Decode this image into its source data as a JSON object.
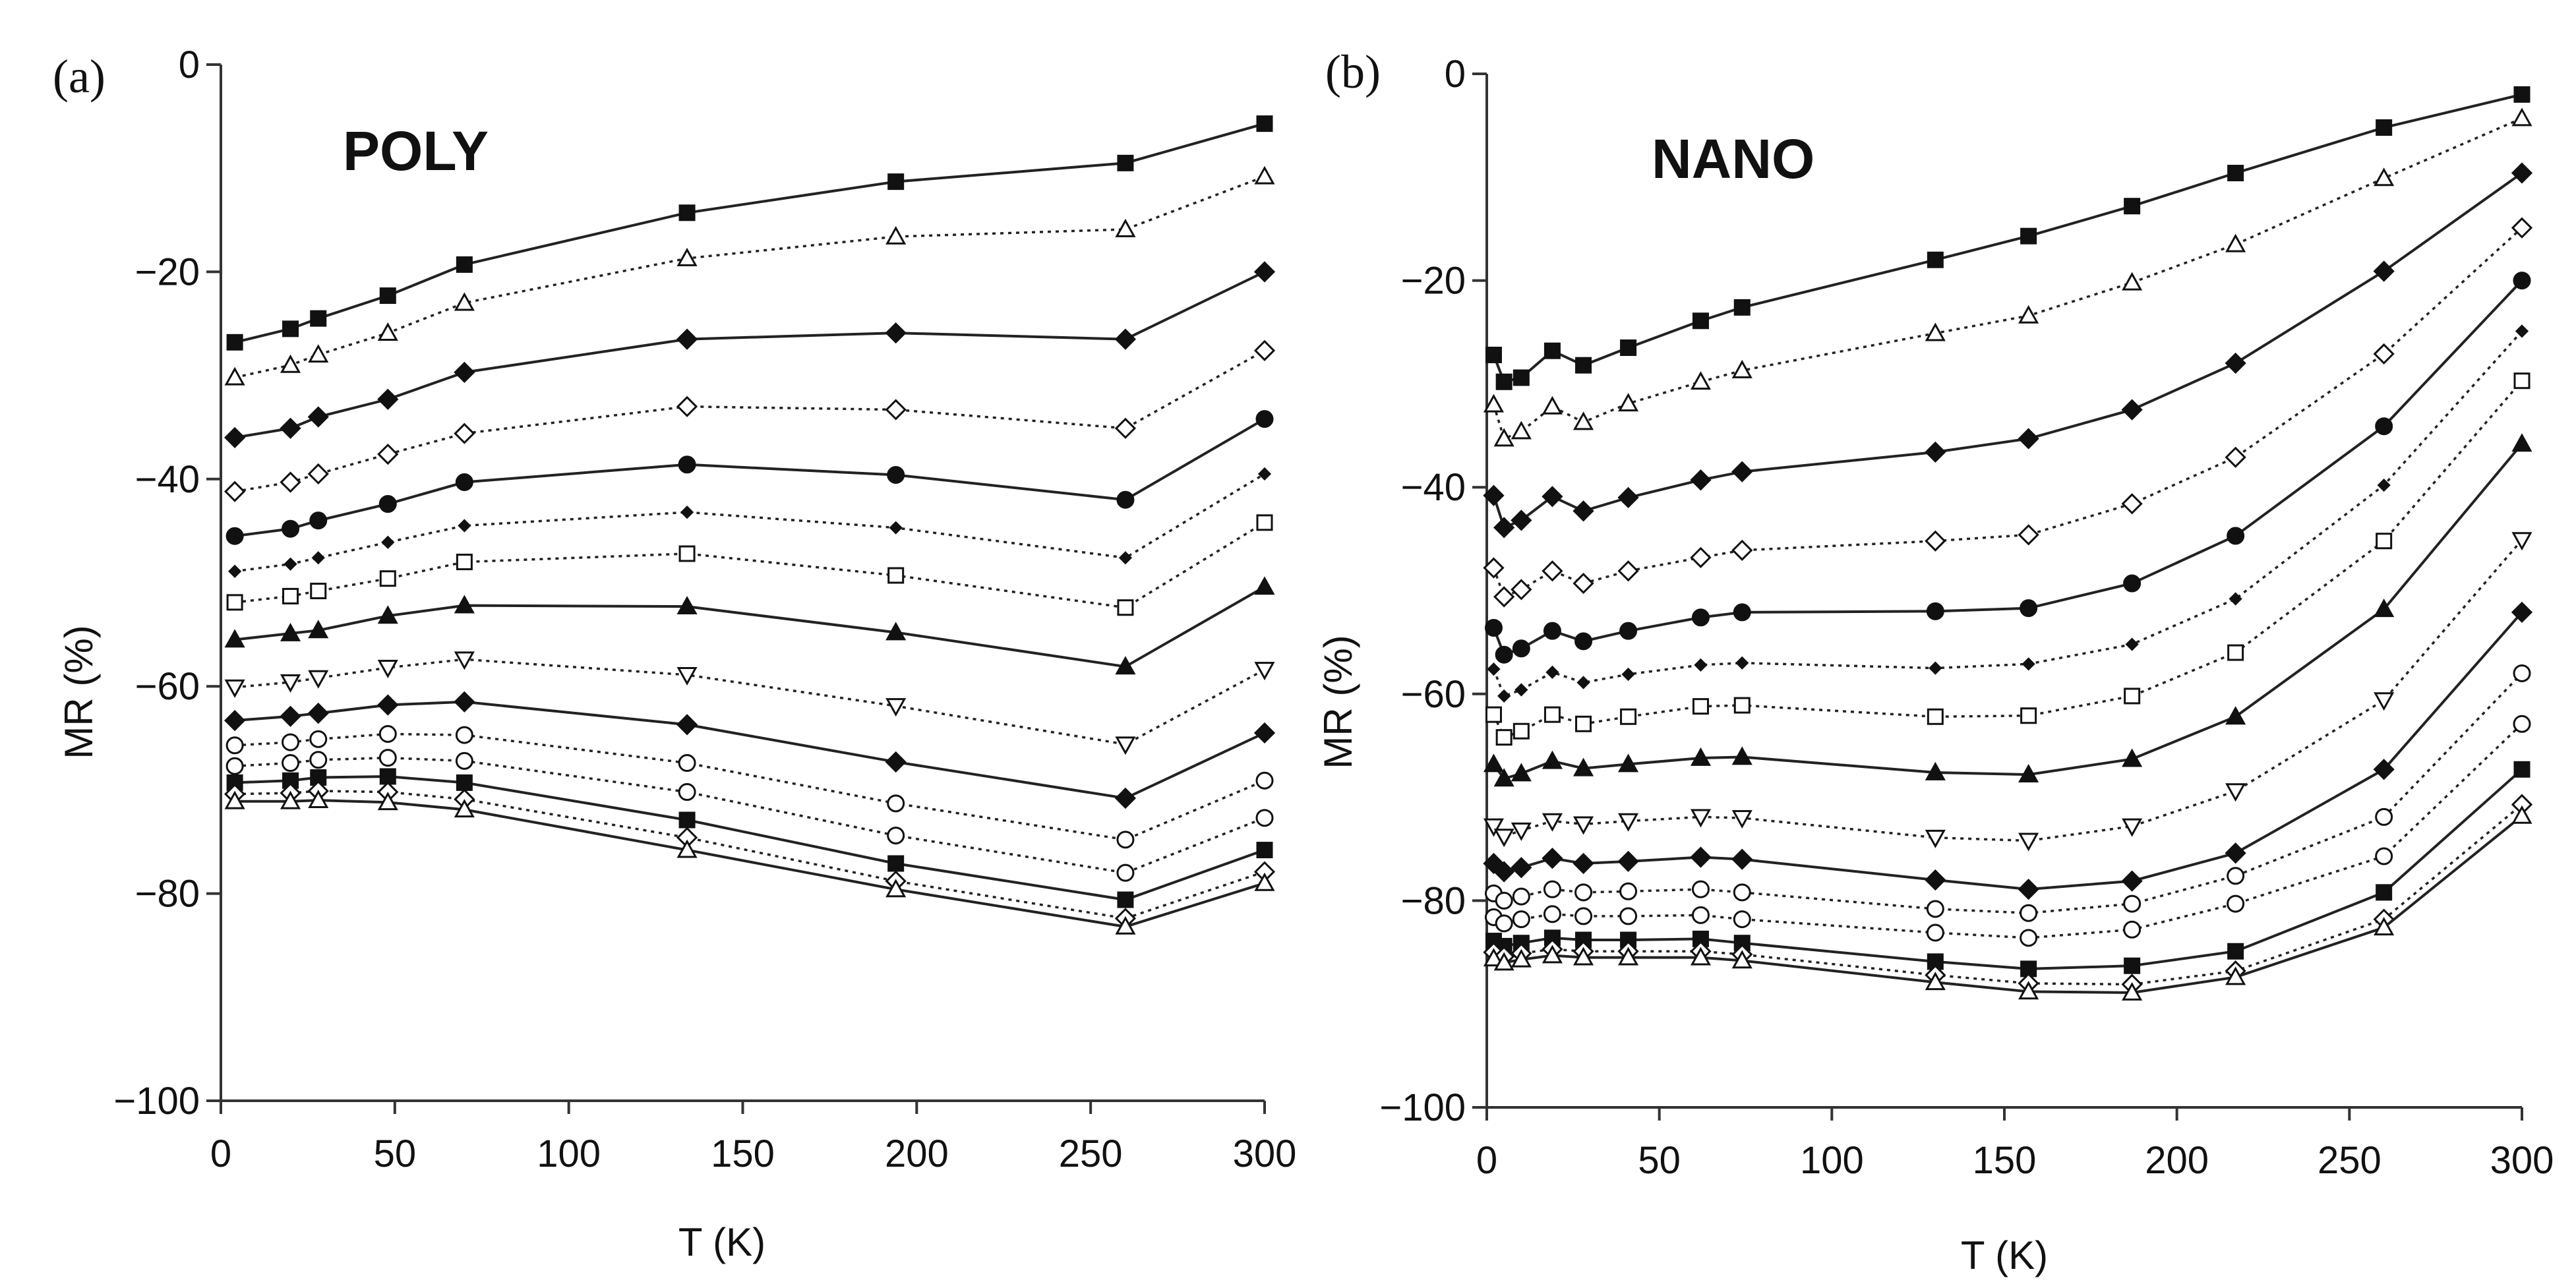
{
  "chart_data": [
    {
      "type": "line",
      "panel_letter": "(a)",
      "title": "POLY",
      "xlabel": "T (K)",
      "ylabel": "MR (%)",
      "xlim": [
        0,
        300
      ],
      "ylim": [
        -100,
        0
      ],
      "xticks": [
        0,
        50,
        100,
        150,
        200,
        250,
        300
      ],
      "yticks": [
        0,
        -20,
        -40,
        -60,
        -80,
        -100
      ],
      "xtick_labels": [
        "0",
        "50",
        "100",
        "150",
        "200",
        "250",
        "300"
      ],
      "ytick_labels": [
        "0",
        "−20",
        "−40",
        "−60",
        "−80",
        "−100"
      ],
      "x": [
        4,
        20,
        28,
        48,
        70,
        134,
        194,
        260,
        300
      ],
      "series": [
        {
          "marker": "square-filled",
          "line": "solid",
          "values": [
            -26.8,
            -25.5,
            -24.5,
            -22.3,
            -19.3,
            -14.3,
            -11.3,
            -9.5,
            -5.7
          ]
        },
        {
          "marker": "triangle-open",
          "line": "dotted",
          "values": [
            -30.2,
            -29.0,
            -28.0,
            -25.9,
            -23.0,
            -18.7,
            -16.6,
            -15.9,
            -10.8
          ]
        },
        {
          "marker": "diamond-filled",
          "line": "solid",
          "values": [
            -36.0,
            -35.1,
            -34.0,
            -32.3,
            -29.7,
            -26.5,
            -25.9,
            -26.5,
            -20.0
          ]
        },
        {
          "marker": "diamond-open",
          "line": "dotted",
          "values": [
            -41.2,
            -40.3,
            -39.5,
            -37.6,
            -35.6,
            -33.0,
            -33.3,
            -35.1,
            -27.6
          ]
        },
        {
          "marker": "circle-filled",
          "line": "solid",
          "values": [
            -45.5,
            -44.8,
            -44.0,
            -42.4,
            -40.3,
            -38.6,
            -39.6,
            -42.0,
            -34.2
          ]
        },
        {
          "marker": "small-diamond",
          "line": "dotted",
          "values": [
            -48.9,
            -48.2,
            -47.6,
            -46.1,
            -44.5,
            -43.2,
            -44.7,
            -47.6,
            -39.5
          ]
        },
        {
          "marker": "square-open",
          "line": "dotted",
          "values": [
            -51.9,
            -51.3,
            -50.8,
            -49.6,
            -48.0,
            -47.2,
            -49.3,
            -52.4,
            -44.2
          ]
        },
        {
          "marker": "triangle-filled",
          "line": "solid",
          "values": [
            -55.5,
            -54.9,
            -54.6,
            -53.2,
            -52.2,
            -52.3,
            -54.8,
            -58.1,
            -50.4
          ]
        },
        {
          "marker": "down-triangle-open",
          "line": "dotted",
          "values": [
            -60.1,
            -59.6,
            -59.2,
            -58.2,
            -57.4,
            -58.9,
            -61.9,
            -65.6,
            -58.4
          ]
        },
        {
          "marker": "diamond-filled",
          "line": "solid",
          "values": [
            -63.3,
            -62.9,
            -62.6,
            -61.8,
            -61.5,
            -63.7,
            -67.3,
            -70.8,
            -64.5
          ]
        },
        {
          "marker": "circle-open",
          "line": "dotted",
          "values": [
            -65.7,
            -65.4,
            -65.1,
            -64.6,
            -64.7,
            -67.4,
            -71.3,
            -74.8,
            -69.1
          ]
        },
        {
          "marker": "circle-open",
          "line": "dotted",
          "values": [
            -67.7,
            -67.4,
            -67.1,
            -66.9,
            -67.2,
            -70.2,
            -74.4,
            -78.0,
            -72.7
          ]
        },
        {
          "marker": "square-filled",
          "line": "solid",
          "values": [
            -69.3,
            -69.1,
            -68.8,
            -68.7,
            -69.3,
            -72.9,
            -77.1,
            -80.6,
            -75.8
          ]
        },
        {
          "marker": "diamond-open",
          "line": "dotted",
          "values": [
            -70.4,
            -70.3,
            -70.1,
            -70.2,
            -70.9,
            -74.6,
            -78.8,
            -82.4,
            -77.9
          ]
        },
        {
          "marker": "triangle-open",
          "line": "solid",
          "values": [
            -71.1,
            -71.1,
            -71.0,
            -71.2,
            -71.9,
            -75.8,
            -79.6,
            -83.2,
            -79.0
          ]
        }
      ]
    },
    {
      "type": "line",
      "panel_letter": "(b)",
      "title": "NANO",
      "xlabel": "T (K)",
      "ylabel": "MR (%)",
      "xlim": [
        0,
        300
      ],
      "ylim": [
        -100,
        0
      ],
      "xticks": [
        0,
        50,
        100,
        150,
        200,
        250,
        300
      ],
      "yticks": [
        0,
        -20,
        -40,
        -60,
        -80,
        -100
      ],
      "xtick_labels": [
        "0",
        "50",
        "100",
        "150",
        "200",
        "250",
        "300"
      ],
      "ytick_labels": [
        "0",
        "−20",
        "−40",
        "−60",
        "−80",
        "−100"
      ],
      "x": [
        2,
        5,
        10,
        19,
        28,
        41,
        62,
        74,
        130,
        157,
        187,
        217,
        260,
        300
      ],
      "series": [
        {
          "marker": "square-filled",
          "line": "solid",
          "values": [
            -27.2,
            -29.8,
            -29.4,
            -26.8,
            -28.2,
            -26.5,
            -23.9,
            -22.6,
            -18.0,
            -15.7,
            -12.8,
            -9.6,
            -5.2,
            -2.0
          ]
        },
        {
          "marker": "triangle-open",
          "line": "dotted",
          "values": [
            -32.0,
            -35.3,
            -34.6,
            -32.2,
            -33.7,
            -31.9,
            -29.8,
            -28.7,
            -25.1,
            -23.4,
            -20.2,
            -16.5,
            -10.1,
            -4.3
          ]
        },
        {
          "marker": "diamond-filled",
          "line": "solid",
          "values": [
            -40.8,
            -43.9,
            -43.2,
            -40.9,
            -42.3,
            -41.0,
            -39.3,
            -38.5,
            -36.6,
            -35.3,
            -32.5,
            -28.0,
            -19.1,
            -9.6
          ]
        },
        {
          "marker": "diamond-open",
          "line": "dotted",
          "values": [
            -47.8,
            -50.6,
            -49.9,
            -48.1,
            -49.3,
            -48.1,
            -46.8,
            -46.1,
            -45.2,
            -44.6,
            -41.6,
            -37.1,
            -27.1,
            -14.9
          ]
        },
        {
          "marker": "circle-filled",
          "line": "solid",
          "values": [
            -53.6,
            -56.2,
            -55.6,
            -53.9,
            -54.9,
            -53.9,
            -52.6,
            -52.1,
            -52.0,
            -51.7,
            -49.3,
            -44.7,
            -34.1,
            -20.0
          ]
        },
        {
          "marker": "small-diamond",
          "line": "dotted",
          "values": [
            -57.6,
            -60.2,
            -59.6,
            -57.9,
            -58.9,
            -58.1,
            -57.2,
            -57.0,
            -57.5,
            -57.1,
            -55.2,
            -50.8,
            -39.8,
            -24.9
          ]
        },
        {
          "marker": "square-open",
          "line": "dotted",
          "values": [
            -62.0,
            -64.2,
            -63.6,
            -62.0,
            -62.9,
            -62.2,
            -61.2,
            -61.1,
            -62.2,
            -62.1,
            -60.2,
            -56.0,
            -45.2,
            -29.7
          ]
        },
        {
          "marker": "triangle-filled",
          "line": "solid",
          "values": [
            -66.8,
            -68.2,
            -67.7,
            -66.5,
            -67.2,
            -66.8,
            -66.2,
            -66.1,
            -67.6,
            -67.8,
            -66.3,
            -62.2,
            -51.8,
            -35.8
          ]
        },
        {
          "marker": "down-triangle-open",
          "line": "dotted",
          "values": [
            -72.8,
            -73.8,
            -73.2,
            -72.3,
            -72.6,
            -72.3,
            -71.9,
            -72.0,
            -73.9,
            -74.2,
            -72.8,
            -69.4,
            -60.6,
            -45.1
          ]
        },
        {
          "marker": "diamond-filled",
          "line": "solid",
          "values": [
            -76.4,
            -77.2,
            -76.8,
            -75.9,
            -76.4,
            -76.2,
            -75.8,
            -76.0,
            -78.0,
            -78.9,
            -78.1,
            -75.4,
            -67.3,
            -52.1
          ]
        },
        {
          "marker": "circle-open",
          "line": "dotted",
          "values": [
            -79.3,
            -80.0,
            -79.6,
            -78.9,
            -79.2,
            -79.1,
            -78.9,
            -79.2,
            -80.8,
            -81.2,
            -80.3,
            -77.6,
            -71.9,
            -58.0
          ]
        },
        {
          "marker": "circle-open",
          "line": "dotted",
          "values": [
            -81.6,
            -82.2,
            -81.8,
            -81.3,
            -81.5,
            -81.5,
            -81.4,
            -81.8,
            -83.1,
            -83.6,
            -82.8,
            -80.3,
            -75.7,
            -62.9
          ]
        },
        {
          "marker": "square-filled",
          "line": "solid",
          "values": [
            -83.9,
            -84.4,
            -84.1,
            -83.6,
            -83.8,
            -83.8,
            -83.7,
            -84.1,
            -85.9,
            -86.6,
            -86.3,
            -84.9,
            -79.2,
            -67.3
          ]
        },
        {
          "marker": "diamond-open",
          "line": "dotted",
          "values": [
            -85.0,
            -85.4,
            -85.1,
            -84.7,
            -84.9,
            -84.9,
            -84.9,
            -85.2,
            -87.2,
            -88.0,
            -88.1,
            -86.8,
            -81.8,
            -70.7
          ]
        },
        {
          "marker": "triangle-open",
          "line": "solid",
          "values": [
            -85.6,
            -86.0,
            -85.7,
            -85.3,
            -85.5,
            -85.5,
            -85.5,
            -85.8,
            -87.9,
            -88.8,
            -88.9,
            -87.4,
            -82.6,
            -71.8
          ]
        }
      ]
    }
  ]
}
